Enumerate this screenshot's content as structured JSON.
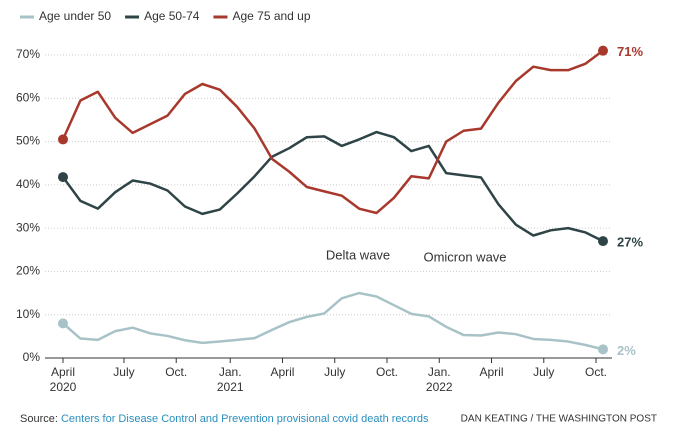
{
  "chart_data": {
    "type": "line",
    "x": [
      0,
      1,
      2,
      3,
      4,
      5,
      6,
      7,
      8,
      9,
      10,
      11,
      12,
      13,
      14,
      15,
      16,
      17,
      18,
      19,
      20,
      21,
      22,
      23,
      24,
      25,
      26,
      27,
      28,
      29,
      30,
      31
    ],
    "xlim": [
      0,
      31
    ],
    "xticks": [
      {
        "value": 0,
        "label": "April"
      },
      {
        "value": 3.5,
        "label": "July"
      },
      {
        "value": 6.5,
        "label": "Oct."
      },
      {
        "value": 9.6,
        "label": "Jan."
      },
      {
        "value": 12.6,
        "label": "April"
      },
      {
        "value": 15.6,
        "label": "July"
      },
      {
        "value": 18.6,
        "label": "Oct."
      },
      {
        "value": 21.6,
        "label": "Jan."
      },
      {
        "value": 24.6,
        "label": "April"
      },
      {
        "value": 27.6,
        "label": "July"
      },
      {
        "value": 30.6,
        "label": "Oct."
      }
    ],
    "xyears": [
      {
        "value": 0,
        "label": "2020"
      },
      {
        "value": 9.6,
        "label": "2021"
      },
      {
        "value": 21.6,
        "label": "2022"
      }
    ],
    "ylim": [
      0,
      70
    ],
    "yticks": [
      {
        "value": 0,
        "label": "0%"
      },
      {
        "value": 10,
        "label": "10%"
      },
      {
        "value": 20,
        "label": "20%"
      },
      {
        "value": 30,
        "label": "30%"
      },
      {
        "value": 40,
        "label": "40%"
      },
      {
        "value": 50,
        "label": "50%"
      },
      {
        "value": 60,
        "label": "60%"
      },
      {
        "value": 70,
        "label": "70%"
      }
    ],
    "grid": true,
    "series": [
      {
        "name": "Age under 50",
        "color": "#a8c3c7",
        "end_label": "2%",
        "values": [
          8,
          4.5,
          4.2,
          6.2,
          7,
          5.7,
          5.1,
          4.1,
          3.5,
          3.8,
          4.2,
          4.6,
          6.5,
          8.3,
          9.5,
          10.3,
          13.8,
          15,
          14.2,
          12.2,
          10.2,
          9.6,
          7.2,
          5.3,
          5.2,
          5.9,
          5.5,
          4.4,
          4.2,
          3.8,
          3,
          2
        ]
      },
      {
        "name": "Age 50-74",
        "color": "#2e4447",
        "end_label": "27%",
        "values": [
          41.8,
          36.3,
          34.5,
          38.3,
          41,
          40.3,
          38.7,
          35,
          33.3,
          34.3,
          38,
          42,
          46.5,
          48.5,
          51,
          51.2,
          49,
          50.5,
          52.2,
          51,
          47.8,
          49,
          42.7,
          42.2,
          41.7,
          35.5,
          30.8,
          28.3,
          29.5,
          30,
          29,
          27
        ]
      },
      {
        "name": "Age 75 and up",
        "color": "#a8382c",
        "end_label": "71%",
        "values": [
          50.5,
          59.5,
          61.5,
          55.5,
          52,
          54,
          56,
          61,
          63.3,
          62,
          58,
          53,
          46,
          43,
          39.5,
          38.5,
          37.5,
          34.5,
          33.5,
          37,
          42,
          41.5,
          50,
          52.5,
          53,
          59,
          64,
          67.3,
          66.5,
          66.5,
          68,
          71
        ]
      }
    ],
    "annotations": [
      "Delta wave",
      "Omicron wave"
    ],
    "source_prefix": "Source: ",
    "source_link": "Centers for Disease Control and Prevention provisional covid death records",
    "credit": "DAN KEATING / THE WASHINGTON POST"
  }
}
